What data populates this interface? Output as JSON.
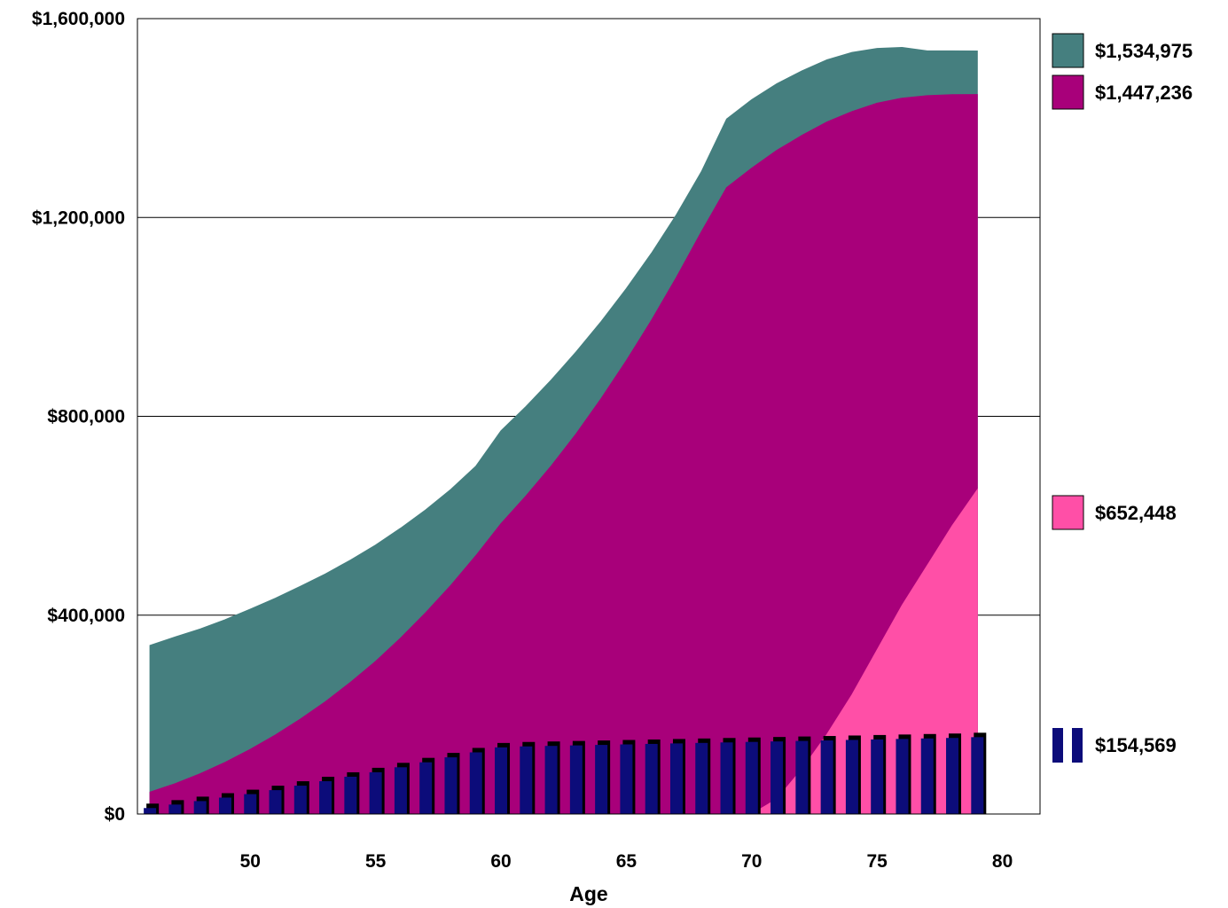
{
  "chart_data": {
    "type": "area",
    "xlabel": "Age",
    "ylabel": "",
    "xlim": [
      45.5,
      81.5
    ],
    "ylim": [
      0,
      1600000
    ],
    "x_ticks": [
      {
        "value": 50,
        "label": "50"
      },
      {
        "value": 55,
        "label": "55"
      },
      {
        "value": 60,
        "label": "60"
      },
      {
        "value": 65,
        "label": "65"
      },
      {
        "value": 70,
        "label": "70"
      },
      {
        "value": 75,
        "label": "75"
      },
      {
        "value": 80,
        "label": "80"
      }
    ],
    "y_ticks": [
      {
        "value": 0,
        "label": "$0"
      },
      {
        "value": 400000,
        "label": "$400,000"
      },
      {
        "value": 800000,
        "label": "$800,000"
      },
      {
        "value": 1200000,
        "label": "$1,200,000"
      },
      {
        "value": 1600000,
        "label": "$1,600,000"
      }
    ],
    "grid": true,
    "legend_position": "right",
    "x": [
      46,
      47,
      48,
      49,
      50,
      51,
      52,
      53,
      54,
      55,
      56,
      57,
      58,
      59,
      60,
      61,
      62,
      63,
      64,
      65,
      66,
      67,
      68,
      69,
      70,
      71,
      72,
      73,
      74,
      75,
      76,
      77,
      78,
      79
    ],
    "series": [
      {
        "type": "area",
        "color": "#457f7f",
        "values": [
          339000,
          356000,
          372000,
          391000,
          412000,
          434000,
          458000,
          483000,
          511000,
          541000,
          575000,
          612000,
          653000,
          700000,
          771000,
          820000,
          873000,
          930000,
          991000,
          1057000,
          1128000,
          1206000,
          1293000,
          1398000,
          1437000,
          1469000,
          1495000,
          1517000,
          1532000,
          1540000,
          1542000,
          1535000,
          1535000,
          1534975
        ]
      },
      {
        "type": "area",
        "color": "#a8007a",
        "values": [
          44000,
          61000,
          81000,
          104000,
          130000,
          159000,
          191000,
          226000,
          265000,
          307000,
          354000,
          405000,
          460000,
          520000,
          584000,
          640000,
          700000,
          765000,
          836000,
          912000,
          993000,
          1080000,
          1172000,
          1260000,
          1299000,
          1335000,
          1365000,
          1392000,
          1413000,
          1430000,
          1440000,
          1445000,
          1447000,
          1447236
        ]
      },
      {
        "type": "area",
        "color": "#ff4fa7",
        "values": [
          0,
          0,
          0,
          0,
          0,
          0,
          0,
          0,
          0,
          0,
          0,
          0,
          0,
          0,
          0,
          0,
          0,
          0,
          0,
          0,
          0,
          0,
          0,
          0,
          0,
          30000,
          90000,
          160000,
          240000,
          330000,
          420000,
          500000,
          580000,
          652448
        ]
      },
      {
        "type": "bar",
        "color": "#0c0c7a",
        "values": [
          12000,
          19000,
          26000,
          33000,
          40000,
          48000,
          57000,
          66000,
          75000,
          84000,
          94000,
          104000,
          114000,
          124000,
          134000,
          136000,
          137000,
          138000,
          139000,
          140000,
          141000,
          142000,
          143000,
          144000,
          145000,
          146000,
          147000,
          148000,
          149000,
          150000,
          151000,
          152000,
          153000,
          154569
        ]
      }
    ],
    "legend": [
      {
        "label": "$1,534,975",
        "color": "#457f7f",
        "anchor_value": 1534975,
        "marker": "box"
      },
      {
        "label": "$1,447,236",
        "color": "#a8007a",
        "anchor_value": 1447236,
        "marker": "box"
      },
      {
        "label": "$652,448",
        "color": "#ff4fa7",
        "anchor_value": 652448,
        "marker": "box"
      },
      {
        "label": "$154,569",
        "color": "#0c0c7a",
        "anchor_value": 154569,
        "marker": "bars"
      }
    ]
  }
}
